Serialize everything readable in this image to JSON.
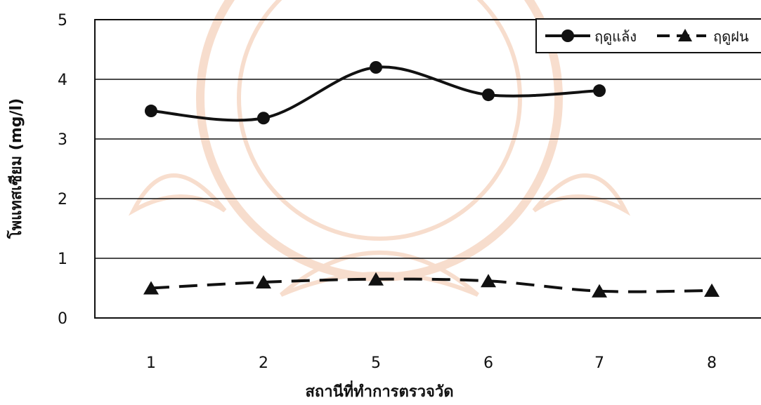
{
  "chart_data": {
    "type": "line",
    "categories": [
      "1",
      "2",
      "5",
      "6",
      "7",
      "8"
    ],
    "xlabel": "สถานีที่ทำการตรวจวัด",
    "ylabel": "โพแทสเซียม (mg/l)",
    "ylim": [
      0,
      5
    ],
    "yticks": [
      "0",
      "1",
      "2",
      "3",
      "4",
      "5"
    ],
    "grid": "horizontal",
    "legend_position": "top-right",
    "series": [
      {
        "name": "ฤดูแล้ง",
        "marker": "circle",
        "line_style": "solid",
        "color": "#111111",
        "values": [
          3.47,
          3.35,
          4.2,
          3.74,
          3.81,
          null
        ]
      },
      {
        "name": "ฤดูฝน",
        "marker": "triangle",
        "line_style": "dashed",
        "color": "#111111",
        "values": [
          0.5,
          0.6,
          0.65,
          0.62,
          0.45,
          0.46
        ]
      }
    ]
  },
  "watermark": {
    "color": "#f2c3a6"
  }
}
